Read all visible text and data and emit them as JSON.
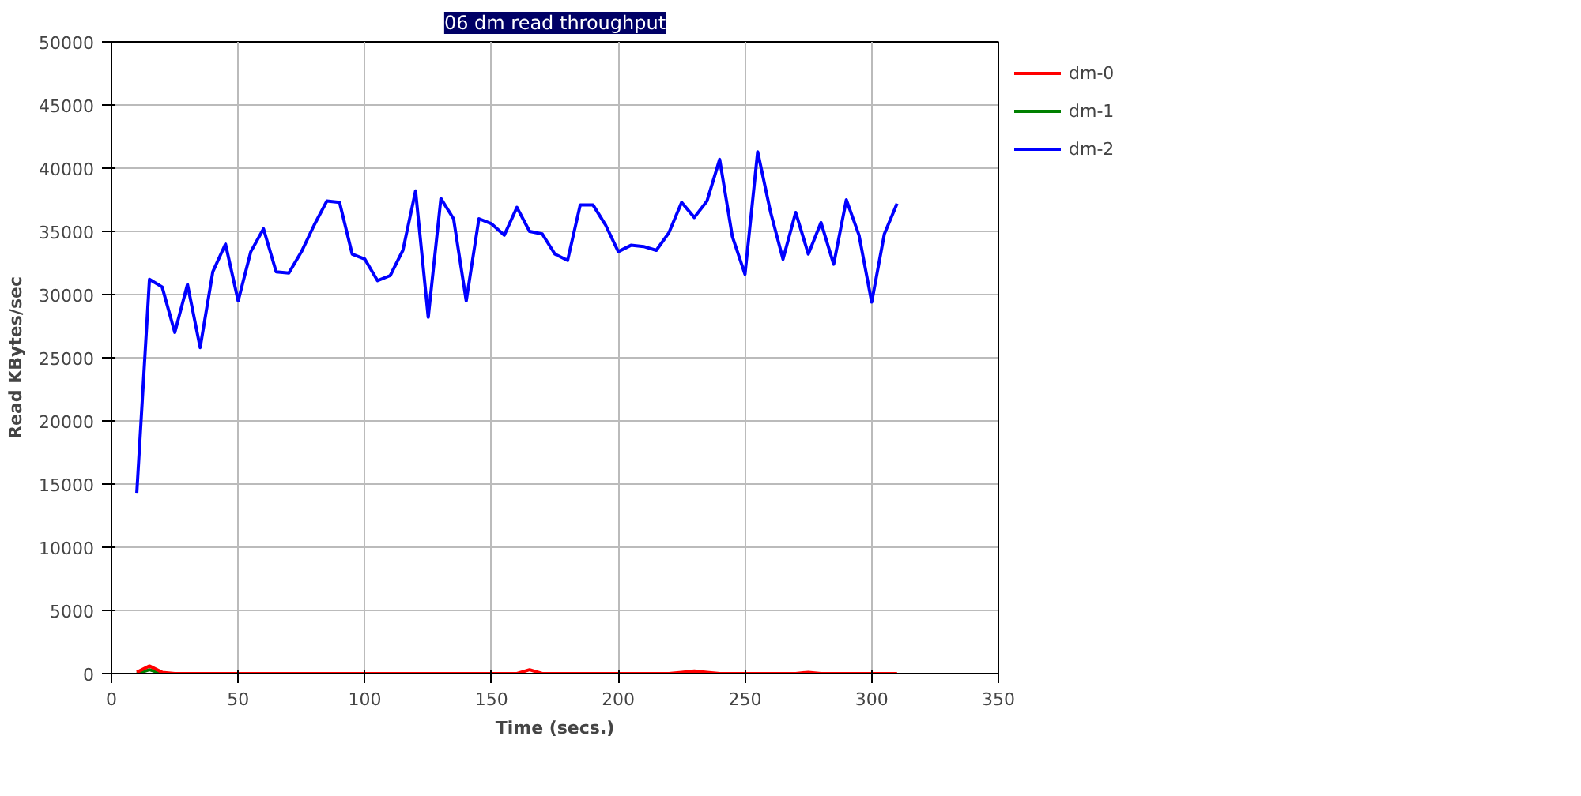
{
  "chart_data": {
    "type": "line",
    "title": "06 dm read throughput",
    "xlabel": "Time (secs.)",
    "ylabel": "Read KBytes/sec",
    "x": [
      10,
      15,
      20,
      25,
      30,
      35,
      40,
      45,
      50,
      55,
      60,
      65,
      70,
      75,
      80,
      85,
      90,
      95,
      100,
      105,
      110,
      115,
      120,
      125,
      130,
      135,
      140,
      145,
      150,
      155,
      160,
      165,
      170,
      175,
      180,
      185,
      190,
      195,
      200,
      205,
      210,
      215,
      220,
      225,
      230,
      235,
      240,
      245,
      250,
      255,
      260,
      265,
      270,
      275,
      280,
      285,
      290,
      295,
      300,
      305,
      310
    ],
    "series": [
      {
        "name": "dm-0",
        "color": "#ff0000",
        "values": [
          100,
          600,
          100,
          0,
          0,
          0,
          0,
          0,
          0,
          0,
          0,
          0,
          0,
          0,
          0,
          0,
          0,
          0,
          0,
          0,
          0,
          0,
          0,
          0,
          0,
          0,
          0,
          0,
          0,
          0,
          0,
          300,
          0,
          0,
          0,
          0,
          0,
          0,
          0,
          0,
          0,
          0,
          0,
          100,
          200,
          100,
          0,
          0,
          0,
          0,
          0,
          0,
          0,
          100,
          0,
          0,
          0,
          0,
          0,
          0,
          0
        ]
      },
      {
        "name": "dm-1",
        "color": "#008000",
        "values": [
          0,
          300,
          0,
          null,
          null,
          null,
          null,
          null,
          null,
          null,
          null,
          null,
          null,
          null,
          null,
          null,
          null,
          null,
          null,
          null,
          null,
          null,
          null,
          null,
          null,
          null,
          null,
          null,
          null,
          null,
          null,
          null,
          null,
          null,
          null,
          null,
          null,
          null,
          null,
          null,
          null,
          null,
          null,
          null,
          null,
          null,
          null,
          null,
          null,
          null,
          null,
          null,
          null,
          null,
          null,
          null,
          null,
          null,
          null,
          null,
          null
        ]
      },
      {
        "name": "dm-2",
        "color": "#0000ff",
        "values": [
          14300,
          31200,
          30600,
          27000,
          30800,
          25800,
          31800,
          34000,
          29500,
          33400,
          35200,
          31800,
          31700,
          33400,
          35500,
          37400,
          37300,
          33200,
          32800,
          31100,
          31500,
          33500,
          38200,
          28200,
          37600,
          36000,
          29500,
          36000,
          35600,
          34700,
          36900,
          35000,
          34800,
          33200,
          32700,
          37100,
          37100,
          35500,
          33400,
          33900,
          33800,
          33500,
          34900,
          37300,
          36100,
          37400,
          40700,
          34600,
          31600,
          41300,
          36600,
          32800,
          36500,
          33200,
          35700,
          32400,
          37500,
          34700,
          29400,
          34800,
          37200
        ]
      }
    ],
    "xlim": [
      0,
      350
    ],
    "xticks": [
      0,
      50,
      100,
      150,
      200,
      250,
      300,
      350
    ],
    "ylim": [
      0,
      50000
    ],
    "yticks": [
      0,
      5000,
      10000,
      15000,
      20000,
      25000,
      30000,
      35000,
      40000,
      45000,
      50000
    ],
    "grid": true,
    "legend": "top right"
  }
}
